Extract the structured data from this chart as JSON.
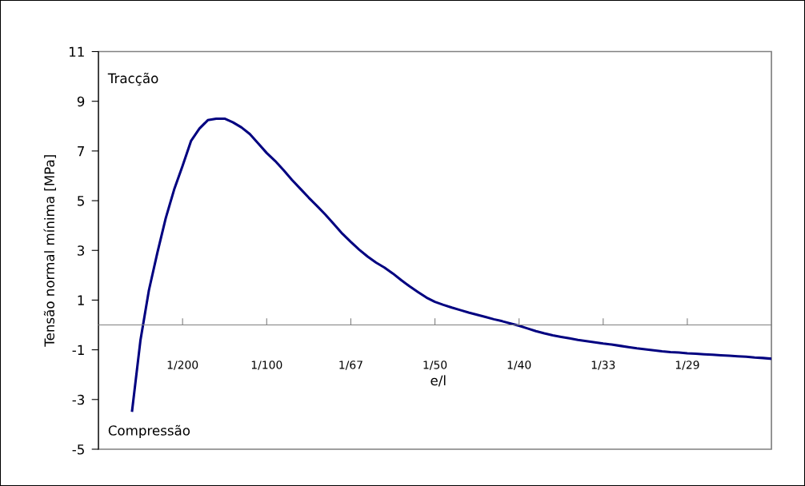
{
  "chart_data": {
    "type": "line",
    "xlabel": "e/l",
    "ylabel": "Tensão normal mínima [MPa]",
    "annotations": [
      "Tracção",
      "Compressão"
    ],
    "categories": [
      null,
      null,
      null,
      null,
      null,
      null,
      null,
      null,
      null,
      null,
      "1/200",
      null,
      null,
      null,
      null,
      null,
      null,
      null,
      null,
      null,
      "1/100",
      null,
      null,
      null,
      null,
      null,
      null,
      null,
      null,
      null,
      "1/67",
      null,
      null,
      null,
      null,
      null,
      null,
      null,
      null,
      null,
      "1/50",
      null,
      null,
      null,
      null,
      null,
      null,
      null,
      null,
      null,
      "1/40",
      null,
      null,
      null,
      null,
      null,
      null,
      null,
      null,
      null,
      "1/33",
      null,
      null,
      null,
      null,
      null,
      null,
      null,
      null,
      null,
      "1/29",
      null,
      null,
      null,
      null,
      null,
      null,
      null,
      null,
      null,
      null
    ],
    "series": [
      {
        "color": "#000080",
        "values": [
          null,
          null,
          null,
          null,
          -3.45,
          -0.6,
          1.4,
          2.9,
          4.3,
          5.45,
          6.4,
          7.4,
          7.9,
          8.24,
          8.3,
          8.3,
          8.15,
          7.95,
          7.68,
          7.3,
          6.92,
          6.6,
          6.23,
          5.84,
          5.48,
          5.12,
          4.78,
          4.43,
          4.05,
          3.67,
          3.34,
          3.03,
          2.75,
          2.51,
          2.31,
          2.07,
          1.8,
          1.55,
          1.32,
          1.1,
          0.93,
          0.81,
          0.7,
          0.6,
          0.5,
          0.41,
          0.32,
          0.23,
          0.15,
          0.06,
          -0.03,
          -0.14,
          -0.25,
          -0.34,
          -0.42,
          -0.48,
          -0.54,
          -0.6,
          -0.65,
          -0.7,
          -0.75,
          -0.79,
          -0.84,
          -0.89,
          -0.94,
          -0.98,
          -1.02,
          -1.06,
          -1.09,
          -1.11,
          -1.14,
          -1.16,
          -1.18,
          -1.2,
          -1.22,
          -1.24,
          -1.26,
          -1.28,
          -1.31,
          -1.33,
          -1.36
        ]
      }
    ],
    "ylim": [
      -5,
      11
    ],
    "yticks": [
      -5,
      -3,
      -1,
      1,
      3,
      5,
      7,
      9,
      11
    ]
  }
}
